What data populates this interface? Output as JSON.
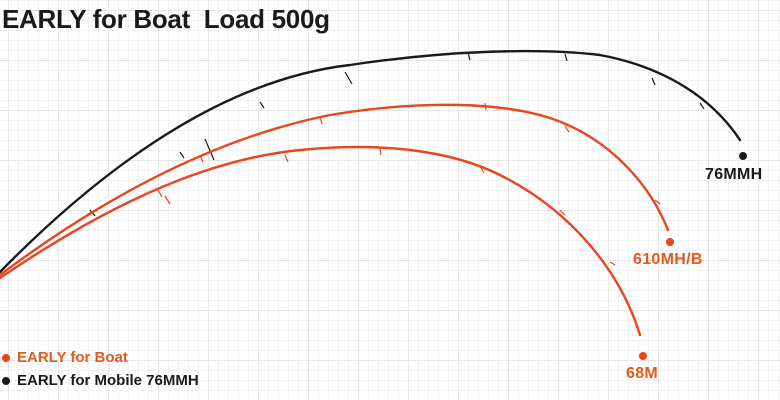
{
  "title": "EARLY for Boat  Load 500g",
  "colors": {
    "boat": "#e8461e",
    "mobile": "#1a1a1a",
    "label_boat": "#e35a1e"
  },
  "rods": [
    {
      "id": "76mmh",
      "label": "76MMH",
      "series": "mobile"
    },
    {
      "id": "610mhb",
      "label": "610MH/B",
      "series": "boat"
    },
    {
      "id": "68m",
      "label": "68M",
      "series": "boat"
    }
  ],
  "legend": [
    {
      "label": "EARLY for Boat",
      "series": "boat"
    },
    {
      "label": "EARLY for Mobile 76MMH",
      "series": "mobile"
    }
  ]
}
